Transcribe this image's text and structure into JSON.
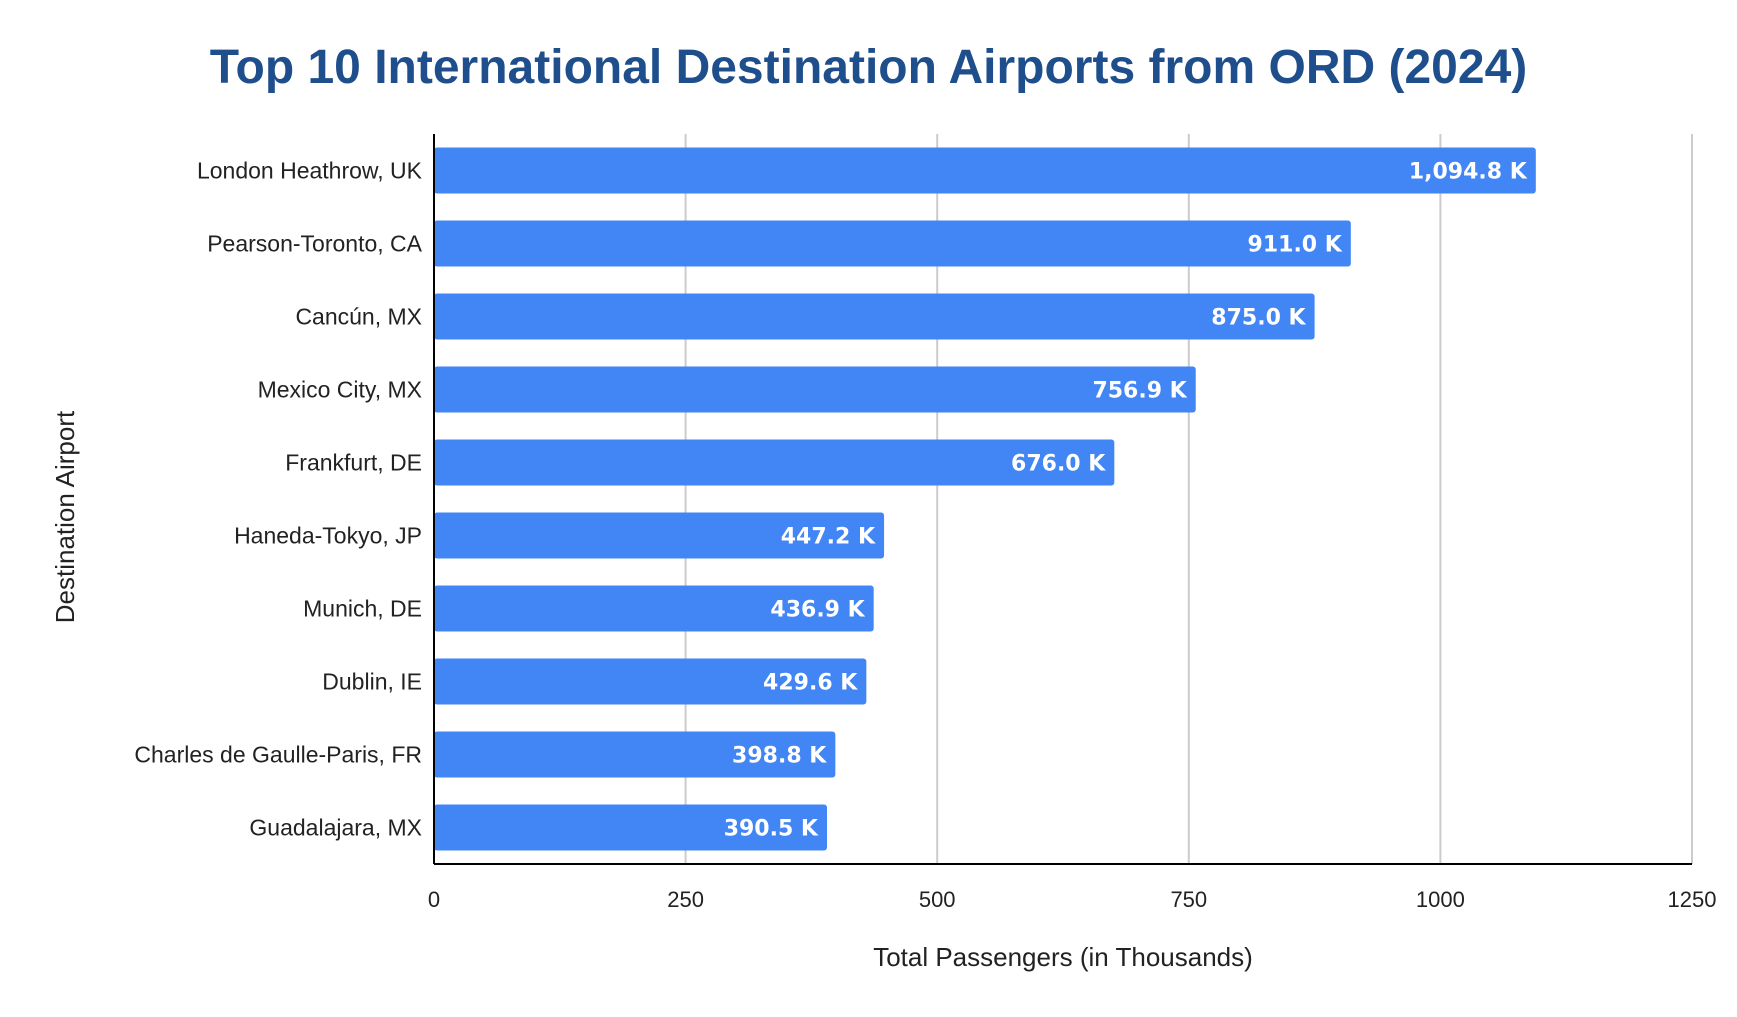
{
  "chart_data": {
    "type": "bar",
    "orientation": "horizontal",
    "title": "Top 10 International Destination Airports from ORD (2024)",
    "xlabel": "Total Passengers (in Thousands)",
    "ylabel": "Destination Airport",
    "categories": [
      "London Heathrow, UK",
      "Pearson-Toronto, CA",
      "Cancún, MX",
      "Mexico City, MX",
      "Frankfurt, DE",
      "Haneda-Tokyo, JP",
      "Munich, DE",
      "Dublin, IE",
      "Charles de Gaulle-Paris, FR",
      "Guadalajara, MX"
    ],
    "values": [
      1094.8,
      911.0,
      875.0,
      756.9,
      676.0,
      447.2,
      436.9,
      429.6,
      398.8,
      390.5
    ],
    "data_labels": [
      "1,094.8 K",
      "911.0 K",
      "875.0 K",
      "756.9 K",
      "676.0 K",
      "447.2 K",
      "436.9 K",
      "429.6 K",
      "398.8 K",
      "390.5 K"
    ],
    "xlim": [
      0,
      1250
    ],
    "xticks": [
      0,
      250,
      500,
      750,
      1000,
      1250
    ],
    "xtick_labels": [
      "0",
      "250",
      "500",
      "750",
      "1000",
      "1250"
    ],
    "grid": "vertical",
    "legend": "none",
    "bar_color": "#4285f4",
    "title_color": "#1f4e8c"
  }
}
